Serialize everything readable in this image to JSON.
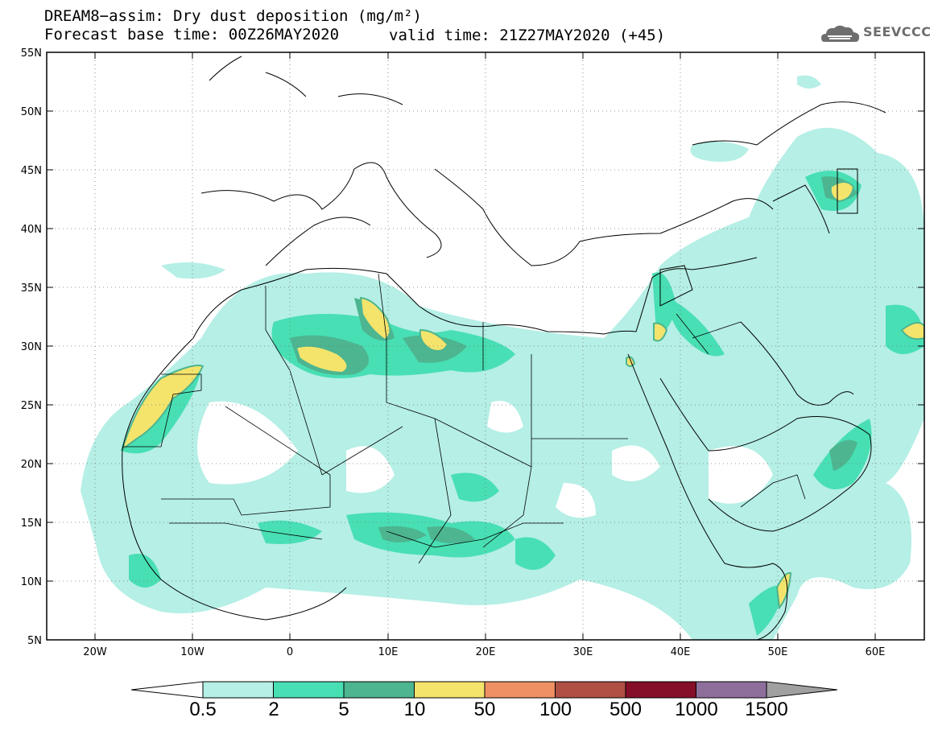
{
  "title_line1": "DREAM8−assim: Dry dust deposition (mg/m²)",
  "title_line2": "Forecast base time: 00Z26MAY2020",
  "valid_time": "valid time: 21Z27MAY2020 (+45)",
  "logo_text": "SEEVCCC",
  "map": {
    "lon_range": [
      -25,
      65
    ],
    "lat_range": [
      5,
      55
    ],
    "lat_ticks": [
      "55N",
      "50N",
      "45N",
      "40N",
      "35N",
      "30N",
      "25N",
      "20N",
      "15N",
      "10N",
      "5N"
    ],
    "lon_ticks": [
      "20W",
      "10W",
      "0",
      "10E",
      "20E",
      "30E",
      "40E",
      "50E",
      "60E"
    ],
    "grid": "dotted"
  },
  "colorbar": {
    "labels": [
      "0.5",
      "2",
      "5",
      "10",
      "50",
      "100",
      "500",
      "1000",
      "1500"
    ],
    "colors": [
      "#b5efe5",
      "#48dfb4",
      "#4db590",
      "#f4e46c",
      "#ee9063",
      "#b04f43",
      "#850e28",
      "#8e6f9c",
      "#a0a0a0"
    ]
  }
}
